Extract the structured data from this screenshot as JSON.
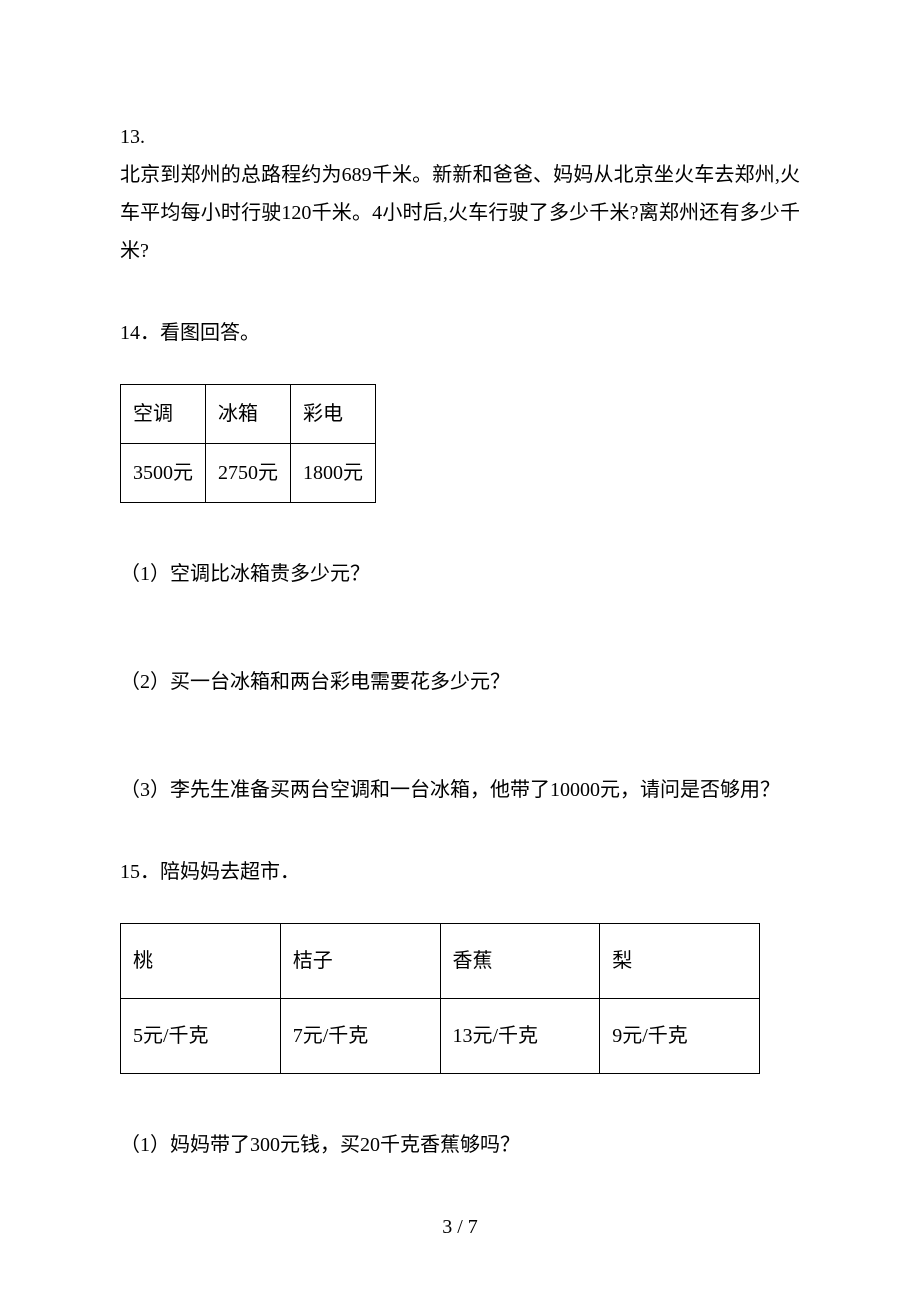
{
  "page": {
    "current": "3",
    "total": "7",
    "sep": " / "
  },
  "q13": {
    "num": "13.",
    "text": "北京到郑州的总路程约为689千米。新新和爸爸、妈妈从北京坐火车去郑州,火车平均每小时行驶120千米。4小时后,火车行驶了多少千米?离郑州还有多少千米?"
  },
  "q14": {
    "heading": "14．看图回答。",
    "table": {
      "headers": [
        "空调",
        "冰箱",
        "彩电"
      ],
      "row": [
        "3500元",
        "2750元",
        "1800元"
      ]
    },
    "sub1": "（1）空调比冰箱贵多少元？",
    "sub2": "（2）买一台冰箱和两台彩电需要花多少元？",
    "sub3": "（3）李先生准备买两台空调和一台冰箱，他带了10000元，请问是否够用？"
  },
  "q15": {
    "heading": "15．陪妈妈去超市．",
    "table": {
      "headers": [
        "桃",
        "桔子",
        "香蕉",
        "梨"
      ],
      "row": [
        "5元/千克",
        "7元/千克",
        "13元/千克",
        "9元/千克"
      ]
    },
    "sub1": "（1）妈妈带了300元钱，买20千克香蕉够吗？"
  },
  "style": {
    "font_family": "SimSun",
    "font_size_pt": 15,
    "text_color": "#000000",
    "background_color": "#ffffff",
    "table_border_color": "#000000"
  }
}
